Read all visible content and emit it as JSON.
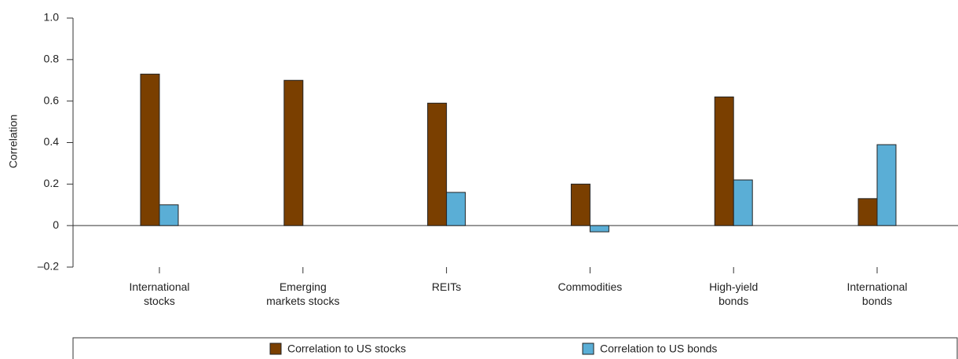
{
  "chart_data": {
    "type": "bar",
    "y_label": "Correlation",
    "categories": [
      "International\nstocks",
      "Emerging\nmarkets stocks",
      "REITs",
      "Commodities",
      "High-yield\nbonds",
      "International\nbonds"
    ],
    "series": [
      {
        "name": "Correlation to US stocks",
        "color": "#7a3f00",
        "values": [
          0.73,
          0.7,
          0.59,
          0.2,
          0.62,
          0.13
        ]
      },
      {
        "name": "Correlation to US bonds",
        "color": "#5aaed6",
        "values": [
          0.1,
          0.0,
          0.16,
          -0.03,
          0.22,
          0.39
        ]
      }
    ],
    "ylim": [
      -0.2,
      1.0
    ],
    "yticks": [
      {
        "value": -0.2,
        "label": "–0.2"
      },
      0,
      0.2,
      0.4,
      0.6,
      0.8,
      {
        "value": 1,
        "label": "1.0"
      }
    ],
    "grid": false
  }
}
